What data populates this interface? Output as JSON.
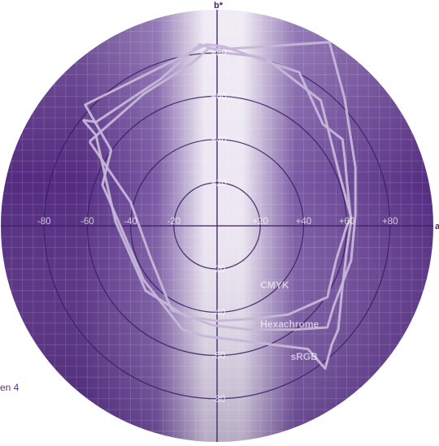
{
  "side_text": "en 4",
  "chart_data": {
    "type": "line",
    "title": "",
    "xlabel": "a*",
    "ylabel": "b*",
    "xlim": [
      -100,
      100
    ],
    "ylim": [
      -100,
      100
    ],
    "grid": true,
    "colors": {
      "disk_dark": "#532b80",
      "disk_mid": "#7a5aa4",
      "disk_light": "#ece7f2",
      "series_line": "#c6b7d8"
    },
    "a_ticks": [
      {
        "value": -80,
        "label": "-80"
      },
      {
        "value": -60,
        "label": "-60"
      },
      {
        "value": -40,
        "label": "-40"
      },
      {
        "value": -20,
        "label": "-20"
      },
      {
        "value": 20,
        "label": "+20"
      },
      {
        "value": 40,
        "label": "+40"
      },
      {
        "value": 60,
        "label": "+60"
      },
      {
        "value": 80,
        "label": "+80"
      }
    ],
    "b_ticks": [
      {
        "value": 80,
        "label": "+80"
      },
      {
        "value": 60,
        "label": "+60"
      },
      {
        "value": 40,
        "label": "+40"
      },
      {
        "value": 20,
        "label": "+20"
      },
      {
        "value": -20,
        "label": "-20"
      },
      {
        "value": -40,
        "label": "-40"
      },
      {
        "value": -60,
        "label": "-60"
      },
      {
        "value": -80,
        "label": "-80"
      }
    ],
    "series": [
      {
        "name": "CMYK",
        "label_at": [
          20,
          -29
        ],
        "points": [
          [
            -62,
            49
          ],
          [
            -56,
            42
          ],
          [
            -47,
            2
          ],
          [
            -33,
            -30
          ],
          [
            -14,
            -42
          ],
          [
            0,
            -44
          ],
          [
            17,
            -43
          ],
          [
            33,
            -41
          ],
          [
            51,
            -33
          ],
          [
            55,
            -16
          ],
          [
            60,
            0
          ],
          [
            62,
            4
          ],
          [
            56,
            26
          ],
          [
            48,
            58
          ],
          [
            22,
            78
          ],
          [
            4,
            80
          ],
          [
            -8,
            84
          ],
          [
            -26,
            68
          ],
          [
            -56,
            48
          ],
          [
            -62,
            49
          ]
        ]
      },
      {
        "name": "Hexachrome",
        "label_at": [
          20,
          -47
        ],
        "points": [
          [
            -59,
            39
          ],
          [
            -40,
            11
          ],
          [
            -31,
            -14
          ],
          [
            -21,
            -39
          ],
          [
            -2,
            -46
          ],
          [
            15,
            -48
          ],
          [
            36,
            -48
          ],
          [
            51,
            -47
          ],
          [
            54,
            -37
          ],
          [
            62,
            -16
          ],
          [
            64,
            5
          ],
          [
            64,
            27
          ],
          [
            59,
            59
          ],
          [
            52,
            85
          ],
          [
            7,
            82
          ],
          [
            -4,
            82
          ],
          [
            -12,
            75
          ],
          [
            -34,
            61
          ],
          [
            -59,
            39
          ]
        ]
      },
      {
        "name": "sRGB",
        "label_at": [
          34,
          -62
        ],
        "points": [
          [
            -5,
            84
          ],
          [
            -61,
            56
          ],
          [
            -49,
            35
          ],
          [
            -53,
            19
          ],
          [
            -46,
            3
          ],
          [
            -34,
            -25
          ],
          [
            -16,
            -48
          ],
          [
            -6,
            -51
          ],
          [
            18,
            -54
          ],
          [
            42,
            -57
          ],
          [
            50,
            -66
          ],
          [
            53,
            -55
          ],
          [
            56,
            -48
          ],
          [
            58,
            -28
          ],
          [
            60,
            -11
          ],
          [
            62,
            2
          ],
          [
            60,
            21
          ],
          [
            59,
            32
          ],
          [
            58,
            40
          ],
          [
            49,
            47
          ],
          [
            38,
            71
          ],
          [
            3,
            83
          ],
          [
            -5,
            84
          ]
        ]
      }
    ]
  }
}
